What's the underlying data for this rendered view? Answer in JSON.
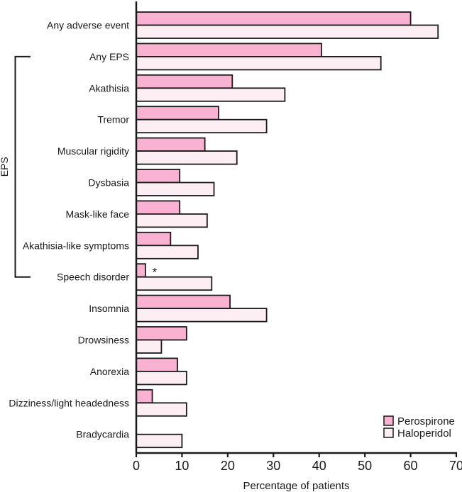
{
  "figure": {
    "background": "#ffffff",
    "text_color": "#1a1a1a"
  },
  "chart_data": {
    "type": "bar",
    "orientation": "horizontal",
    "title": "",
    "xlabel": "Percentage of patients",
    "ylabel": "",
    "xlim": [
      0,
      70
    ],
    "xticks": [
      0,
      10,
      20,
      30,
      40,
      50,
      60,
      70
    ],
    "grid": false,
    "categories": [
      "Any adverse event",
      "Any EPS",
      "Akathisia",
      "Tremor",
      "Muscular rigidity",
      "Dysbasia",
      "Mask-like face",
      "Akathisia-like symptoms",
      "Speech disorder",
      "Insomnia",
      "Drowsiness",
      "Anorexia",
      "Dizziness/light headedness",
      "Bradycardia"
    ],
    "series": [
      {
        "name": "Perospirone",
        "color": "#FAB2D3",
        "values": [
          60,
          40.5,
          21,
          18,
          15,
          9.5,
          9.5,
          7.5,
          2,
          20.5,
          11,
          9,
          3.5,
          0
        ]
      },
      {
        "name": "Haloperidol",
        "color": "#FDEEF3",
        "values": [
          66,
          53.5,
          32.5,
          28.5,
          22,
          17,
          15.5,
          13.5,
          16.5,
          28.5,
          5.5,
          11,
          11,
          10
        ]
      }
    ],
    "annotations": [
      {
        "text": "*",
        "category": "Speech disorder",
        "series": "Perospirone"
      }
    ],
    "group_bracket": {
      "label": "EPS",
      "from_category": "Any EPS",
      "to_category": "Speech disorder"
    },
    "legend": {
      "position": "bottom-right",
      "entries": [
        "Perospirone",
        "Haloperidol"
      ]
    },
    "styles": {
      "bar_border_color": "#1a1a1a",
      "axis_color": "#1a1a1a",
      "text_color": "#1a1a1a"
    }
  }
}
